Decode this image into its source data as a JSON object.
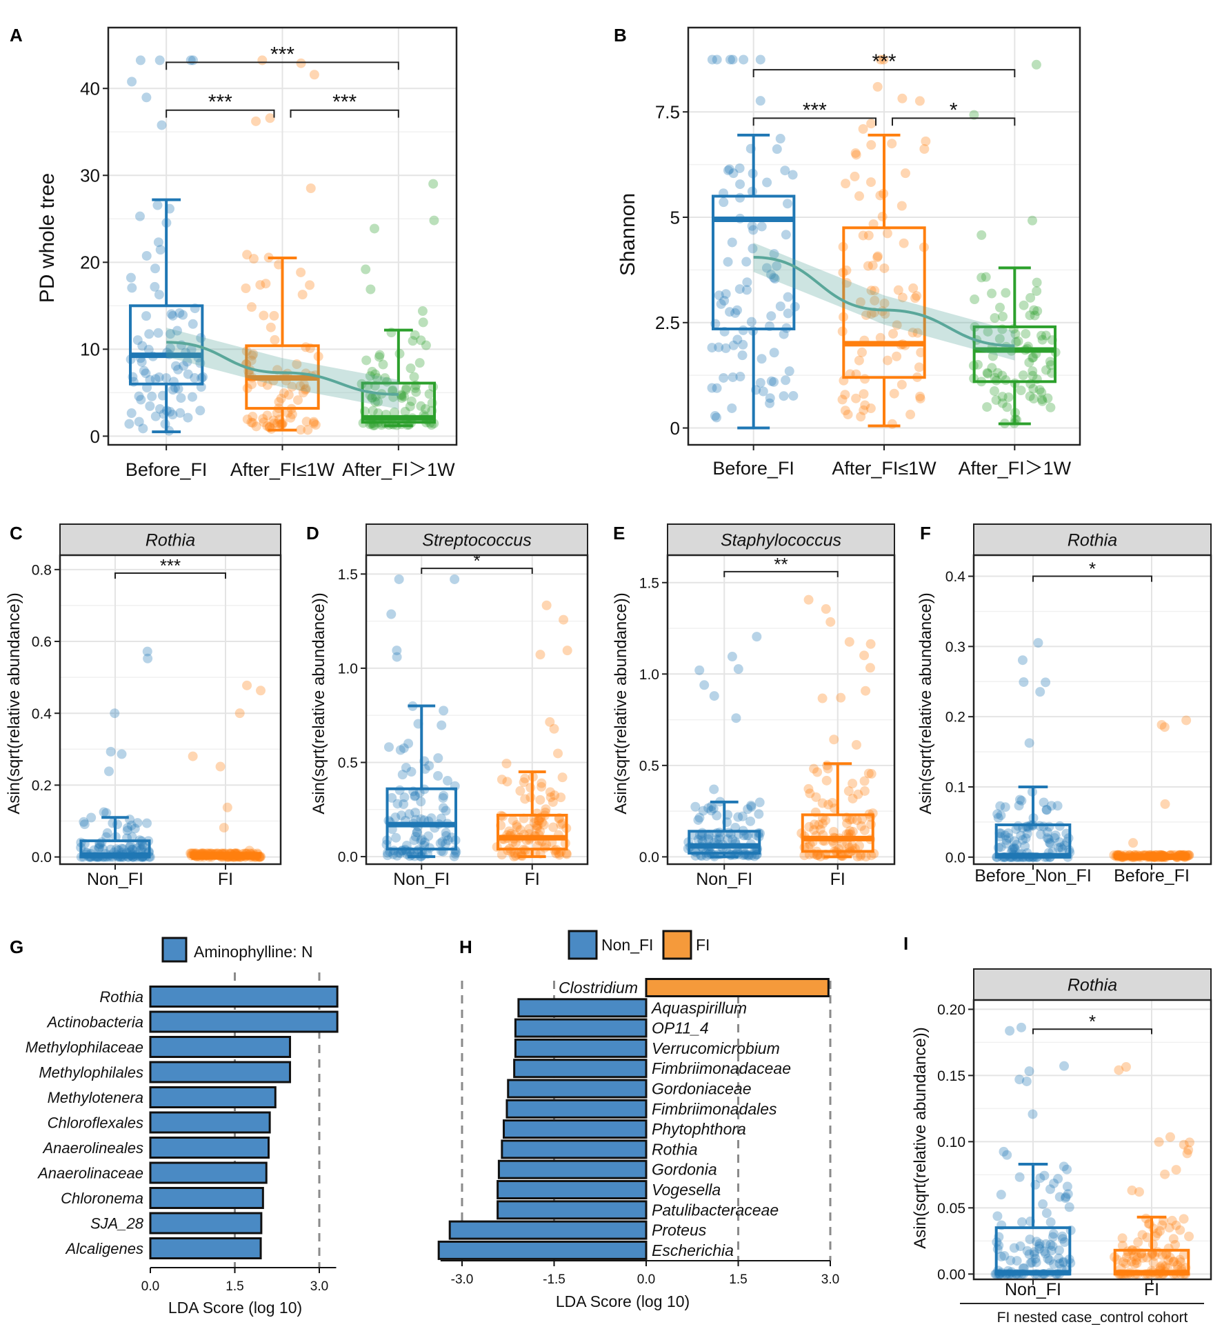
{
  "colors": {
    "blue": "#1f77b4",
    "orange": "#ff7f0e",
    "green": "#2ca02c",
    "bar_blue": "#4a8ac4",
    "bar_orange": "#f59a3b",
    "smooth": "#5aa79a",
    "strip": "#d9d9d9"
  },
  "chart_data": [
    {
      "panel": "A",
      "type": "box",
      "ylabel": "PD whole tree",
      "ylim": [
        -1,
        47
      ],
      "yticks": [
        0,
        10,
        20,
        30,
        40
      ],
      "categories": [
        "Before_FI",
        "After_FI≤1W",
        "After_FI＞1W"
      ],
      "colors": [
        "blue",
        "orange",
        "green"
      ],
      "boxes": [
        {
          "min": 0.5,
          "q1": 6,
          "median": 9.3,
          "q3": 15,
          "max": 27.2
        },
        {
          "min": 0.7,
          "q1": 3.2,
          "median": 6.7,
          "q3": 10.4,
          "max": 20.5
        },
        {
          "min": 1.2,
          "q1": 1.6,
          "median": 2.1,
          "q3": 6.1,
          "max": 12.2
        }
      ],
      "smooth": [
        10.8,
        7.3,
        4.8
      ],
      "comparisons": [
        {
          "from": 0,
          "to": 2,
          "y": 43,
          "label": "***"
        },
        {
          "from": 0,
          "to": 1,
          "y": 37.5,
          "label": "***"
        },
        {
          "from": 1,
          "to": 2,
          "y": 37.5,
          "label": "***"
        }
      ]
    },
    {
      "panel": "B",
      "type": "box",
      "ylabel": "Shannon",
      "ylim": [
        -0.4,
        9.5
      ],
      "yticks": [
        0.0,
        2.5,
        5.0,
        7.5
      ],
      "categories": [
        "Before_FI",
        "After_FI≤1W",
        "After_FI＞1W"
      ],
      "colors": [
        "blue",
        "orange",
        "green"
      ],
      "boxes": [
        {
          "min": 0.0,
          "q1": 2.35,
          "median": 4.95,
          "q3": 5.5,
          "max": 6.95
        },
        {
          "min": 0.05,
          "q1": 1.2,
          "median": 2.0,
          "q3": 4.75,
          "max": 6.95
        },
        {
          "min": 0.1,
          "q1": 1.1,
          "median": 1.85,
          "q3": 2.4,
          "max": 3.8
        }
      ],
      "smooth": [
        4.05,
        2.8,
        1.95
      ],
      "comparisons": [
        {
          "from": 0,
          "to": 2,
          "y": 8.5,
          "label": "***"
        },
        {
          "from": 0,
          "to": 1,
          "y": 7.35,
          "label": "***"
        },
        {
          "from": 1,
          "to": 2,
          "y": 7.35,
          "label": "*"
        }
      ]
    },
    {
      "panel": "C",
      "type": "box",
      "strip": "Rothia",
      "ylabel": "Asin(sqrt(relative abundance))",
      "ylim": [
        -0.02,
        0.84
      ],
      "yticks": [
        "0.0",
        "0.2",
        "0.4",
        "0.6",
        "0.8"
      ],
      "categories": [
        "Non_FI",
        "FI"
      ],
      "colors": [
        "blue",
        "orange"
      ],
      "boxes": [
        {
          "min": 0,
          "q1": 0.0,
          "median": 0.005,
          "q3": 0.045,
          "max": 0.11
        },
        {
          "min": 0,
          "q1": 0.0,
          "median": 0.0,
          "q3": 0.01,
          "max": 0.01
        }
      ],
      "comparisons": [
        {
          "from": 0,
          "to": 1,
          "y": 0.79,
          "label": "***"
        }
      ]
    },
    {
      "panel": "D",
      "type": "box",
      "strip": "Streptococcus",
      "ylabel": "Asin(sqrt(relative abundance))",
      "ylim": [
        -0.04,
        1.6
      ],
      "yticks": [
        "0.0",
        "0.5",
        "1.0",
        "1.5"
      ],
      "categories": [
        "Non_FI",
        "FI"
      ],
      "colors": [
        "blue",
        "orange"
      ],
      "boxes": [
        {
          "min": 0.0,
          "q1": 0.04,
          "median": 0.17,
          "q3": 0.36,
          "max": 0.8
        },
        {
          "min": 0.0,
          "q1": 0.04,
          "median": 0.1,
          "q3": 0.22,
          "max": 0.45
        }
      ],
      "comparisons": [
        {
          "from": 0,
          "to": 1,
          "y": 1.53,
          "label": "*"
        }
      ]
    },
    {
      "panel": "E",
      "type": "box",
      "strip": "Staphylococcus",
      "ylabel": "Asin(sqrt(relative abundance))",
      "ylim": [
        -0.04,
        1.65
      ],
      "yticks": [
        "0.0",
        "0.5",
        "1.0",
        "1.5"
      ],
      "categories": [
        "Non_FI",
        "FI"
      ],
      "colors": [
        "blue",
        "orange"
      ],
      "boxes": [
        {
          "min": 0.0,
          "q1": 0.02,
          "median": 0.06,
          "q3": 0.14,
          "max": 0.3
        },
        {
          "min": 0.0,
          "q1": 0.03,
          "median": 0.1,
          "q3": 0.23,
          "max": 0.51
        }
      ],
      "comparisons": [
        {
          "from": 0,
          "to": 1,
          "y": 1.56,
          "label": "**"
        }
      ]
    },
    {
      "panel": "F",
      "type": "box",
      "strip": "Rothia",
      "ylabel": "Asin(sqrt(relative abundance))",
      "ylim": [
        -0.01,
        0.43
      ],
      "yticks": [
        "0.0",
        "0.1",
        "0.2",
        "0.3",
        "0.4"
      ],
      "categories": [
        "Before_Non_FI",
        "Before_FI"
      ],
      "colors": [
        "blue",
        "orange"
      ],
      "boxes": [
        {
          "min": 0.0,
          "q1": 0.0,
          "median": 0.002,
          "q3": 0.046,
          "max": 0.1
        },
        {
          "min": 0.0,
          "q1": 0.0,
          "median": 0.0,
          "q3": 0.003,
          "max": 0.003
        }
      ],
      "comparisons": [
        {
          "from": 0,
          "to": 1,
          "y": 0.4,
          "label": "*"
        }
      ]
    },
    {
      "panel": "G",
      "type": "bar",
      "legend": "Aminophylline: N",
      "xlabel": "LDA Score (log 10)",
      "xlim": [
        0,
        3.5
      ],
      "xticks": [
        "0.0",
        "1.5",
        "3.0"
      ],
      "categories": [
        "Rothia",
        "Actinobacteria",
        "Methylophilaceae",
        "Methylophilales",
        "Methylotenera",
        "Chloroflexales",
        "Anaerolineales",
        "Anaerolinaceae",
        "Chloronema",
        "SJA_28",
        "Alcaligenes"
      ],
      "values": [
        3.32,
        3.32,
        2.48,
        2.48,
        2.22,
        2.12,
        2.1,
        2.06,
        2.0,
        1.97,
        1.96
      ]
    },
    {
      "panel": "H",
      "type": "bar",
      "legend": [
        "Non_FI",
        "FI"
      ],
      "xlabel": "LDA Score (log 10)",
      "xlim": [
        -3.45,
        3.1
      ],
      "xticks": [
        "-3.0",
        "-1.5",
        "0.0",
        "1.5",
        "3.0"
      ],
      "categories": [
        "Clostridium",
        "Aquaspirillum",
        "OP11_4",
        "Verrucomicrobium",
        "Fimbriimonadaceae",
        "Gordoniaceae",
        "Fimbriimonadales",
        "Phytophthora",
        "Rothia",
        "Gordonia",
        "Vogesella",
        "Patulibacteraceae",
        "Proteus",
        "Escherichia"
      ],
      "values": [
        2.97,
        -2.08,
        -2.13,
        -2.13,
        -2.15,
        -2.25,
        -2.27,
        -2.32,
        -2.35,
        -2.4,
        -2.42,
        -2.42,
        -3.2,
        -3.38
      ]
    },
    {
      "panel": "I",
      "type": "box",
      "strip": "Rothia",
      "ylabel": "Asin(sqrt(relative abundance))",
      "xlabel": "FI nested case_control cohort",
      "ylim": [
        -0.004,
        0.207
      ],
      "yticks": [
        "0.00",
        "0.05",
        "0.10",
        "0.15",
        "0.20"
      ],
      "categories": [
        "Non_FI",
        "FI"
      ],
      "colors": [
        "blue",
        "orange"
      ],
      "boxes": [
        {
          "min": 0.0,
          "q1": 0.0,
          "median": 0.001,
          "q3": 0.035,
          "max": 0.083
        },
        {
          "min": 0.0,
          "q1": 0.0,
          "median": 0.001,
          "q3": 0.018,
          "max": 0.043
        }
      ],
      "comparisons": [
        {
          "from": 0,
          "to": 1,
          "y": 0.185,
          "label": "*"
        }
      ]
    }
  ]
}
